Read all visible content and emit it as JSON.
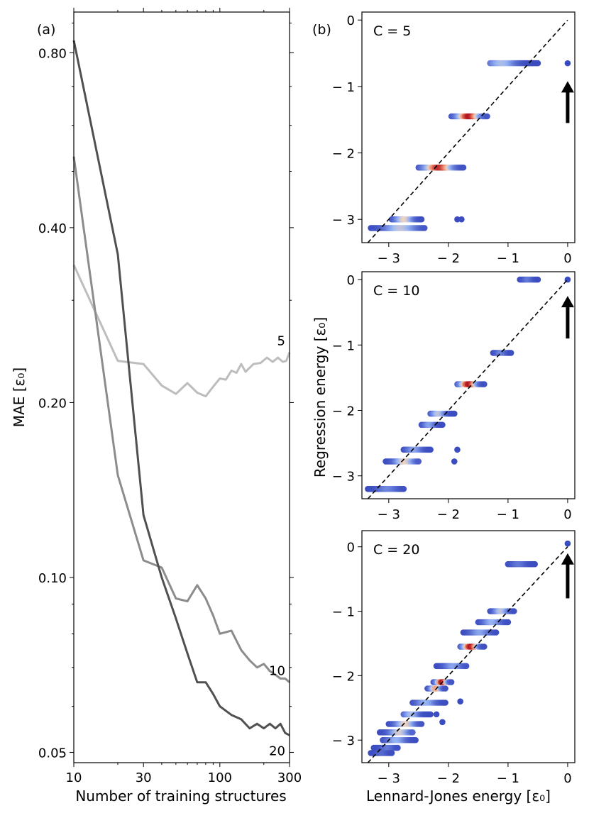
{
  "chart_data": [
    {
      "id": "a",
      "panel_label": "(a)",
      "type": "line",
      "xscale": "log",
      "yscale": "log",
      "xlim": [
        10,
        300
      ],
      "ylim": [
        0.048,
        0.94
      ],
      "xticks": [
        10,
        30,
        100,
        300
      ],
      "xtick_labels": [
        "10",
        "30",
        "100",
        "300"
      ],
      "yticks": [
        0.05,
        0.1,
        0.2,
        0.4,
        0.8
      ],
      "ytick_labels": [
        "0.05",
        "0.10",
        "0.20",
        "0.40",
        "0.80"
      ],
      "xlabel": "Number of training structures",
      "ylabel": "MAE [ε₀]",
      "series": [
        {
          "name": "5",
          "color": "#bdbdbd",
          "points": [
            [
              10,
              0.345
            ],
            [
              20,
              0.236
            ],
            [
              30,
              0.233
            ],
            [
              40,
              0.214
            ],
            [
              50,
              0.207
            ],
            [
              60,
              0.216
            ],
            [
              70,
              0.208
            ],
            [
              80,
              0.205
            ],
            [
              90,
              0.213
            ],
            [
              100,
              0.22
            ],
            [
              110,
              0.219
            ],
            [
              120,
              0.227
            ],
            [
              130,
              0.225
            ],
            [
              140,
              0.233
            ],
            [
              150,
              0.226
            ],
            [
              170,
              0.233
            ],
            [
              190,
              0.234
            ],
            [
              210,
              0.239
            ],
            [
              230,
              0.235
            ],
            [
              250,
              0.239
            ],
            [
              270,
              0.235
            ],
            [
              285,
              0.236
            ],
            [
              300,
              0.244
            ]
          ]
        },
        {
          "name": "10",
          "color": "#8c8c8c",
          "points": [
            [
              10,
              0.53
            ],
            [
              20,
              0.15
            ],
            [
              30,
              0.107
            ],
            [
              40,
              0.104
            ],
            [
              50,
              0.092
            ],
            [
              60,
              0.091
            ],
            [
              70,
              0.097
            ],
            [
              80,
              0.092
            ],
            [
              90,
              0.086
            ],
            [
              100,
              0.08
            ],
            [
              120,
              0.081
            ],
            [
              140,
              0.075
            ],
            [
              160,
              0.072
            ],
            [
              180,
              0.07
            ],
            [
              200,
              0.071
            ],
            [
              220,
              0.069
            ],
            [
              240,
              0.068
            ],
            [
              260,
              0.067
            ],
            [
              280,
              0.067
            ],
            [
              300,
              0.066
            ]
          ]
        },
        {
          "name": "20",
          "color": "#505050",
          "points": [
            [
              10,
              0.84
            ],
            [
              20,
              0.36
            ],
            [
              30,
              0.128
            ],
            [
              40,
              0.1
            ],
            [
              50,
              0.085
            ],
            [
              60,
              0.074
            ],
            [
              70,
              0.066
            ],
            [
              80,
              0.066
            ],
            [
              90,
              0.063
            ],
            [
              100,
              0.06
            ],
            [
              120,
              0.058
            ],
            [
              140,
              0.057
            ],
            [
              160,
              0.055
            ],
            [
              180,
              0.056
            ],
            [
              200,
              0.055
            ],
            [
              220,
              0.056
            ],
            [
              240,
              0.055
            ],
            [
              260,
              0.056
            ],
            [
              280,
              0.054
            ],
            [
              300,
              0.0535
            ]
          ]
        }
      ]
    },
    {
      "id": "b1",
      "panel_label": "(b)",
      "type": "scatter",
      "annotation": "C =  5",
      "xlim": [
        -3.45,
        0.12
      ],
      "ylim": [
        -3.35,
        0.12
      ],
      "xticks": [
        -3,
        -2,
        -1,
        0
      ],
      "xtick_labels": [
        "− 3",
        "− 2",
        "− 1",
        "0"
      ],
      "yticks": [
        0,
        -1,
        -2,
        -3
      ],
      "ytick_labels": [
        "0",
        "− 1",
        "− 2",
        "− 3"
      ],
      "diagonal": [
        [
          -3.35,
          -3.35
        ],
        [
          0,
          0
        ]
      ],
      "arrow": {
        "x": 0,
        "y_from": -1.55,
        "y_to": -0.92
      },
      "clusters": [
        {
          "y": -0.65,
          "x_min": -1.3,
          "x_max": -0.5,
          "peak_x": -1.08,
          "peak_heat": 0.4
        },
        {
          "y": -1.45,
          "x_min": -1.95,
          "x_max": -1.35,
          "peak_x": -1.65,
          "peak_heat": 1.0
        },
        {
          "y": -2.22,
          "x_min": -2.5,
          "x_max": -1.75,
          "peak_x": -2.15,
          "peak_heat": 0.95
        },
        {
          "y": -3.0,
          "x_min": -2.95,
          "x_max": -2.45,
          "peak_x": -2.72,
          "peak_heat": 0.55
        },
        {
          "y": -3.13,
          "x_min": -3.3,
          "x_max": -2.4,
          "peak_x": -2.78,
          "peak_heat": 0.45
        }
      ],
      "outliers": [
        [
          0,
          -0.65
        ],
        [
          -1.85,
          -3.0
        ],
        [
          -1.78,
          -3.0
        ]
      ]
    },
    {
      "id": "b2",
      "type": "scatter",
      "annotation": "C =  10",
      "xlim": [
        -3.45,
        0.12
      ],
      "ylim": [
        -3.35,
        0.12
      ],
      "xticks": [
        -3,
        -2,
        -1,
        0
      ],
      "xtick_labels": [
        "− 3",
        "− 2",
        "− 1",
        "0"
      ],
      "yticks": [
        0,
        -1,
        -2,
        -3
      ],
      "ytick_labels": [
        "0",
        "− 1",
        "− 2",
        "− 3"
      ],
      "ylabel": "Regression energy [ε₀]",
      "diagonal": [
        [
          -3.35,
          -3.35
        ],
        [
          0,
          0
        ]
      ],
      "arrow": {
        "x": 0,
        "y_from": -0.9,
        "y_to": -0.25
      },
      "clusters": [
        {
          "y": 0.0,
          "x_min": -0.8,
          "x_max": -0.5,
          "peak_x": -0.65,
          "peak_heat": 0.15
        },
        {
          "y": -1.12,
          "x_min": -1.25,
          "x_max": -0.95,
          "peak_x": -1.1,
          "peak_heat": 0.2
        },
        {
          "y": -1.6,
          "x_min": -1.85,
          "x_max": -1.4,
          "peak_x": -1.65,
          "peak_heat": 1.0
        },
        {
          "y": -2.05,
          "x_min": -2.3,
          "x_max": -1.9,
          "peak_x": -2.15,
          "peak_heat": 0.45
        },
        {
          "y": -2.22,
          "x_min": -2.45,
          "x_max": -2.1,
          "peak_x": -2.3,
          "peak_heat": 0.3
        },
        {
          "y": -2.6,
          "x_min": -2.75,
          "x_max": -2.3,
          "peak_x": -2.55,
          "peak_heat": 0.3
        },
        {
          "y": -2.78,
          "x_min": -3.05,
          "x_max": -2.5,
          "peak_x": -2.72,
          "peak_heat": 0.55
        },
        {
          "y": -3.2,
          "x_min": -3.35,
          "x_max": -2.75,
          "peak_x": -3.0,
          "peak_heat": 0.2
        }
      ],
      "outliers": [
        [
          0,
          0.0
        ],
        [
          -1.85,
          -2.6
        ],
        [
          -1.9,
          -2.78
        ]
      ]
    },
    {
      "id": "b3",
      "type": "scatter",
      "annotation": "C =  20",
      "xlim": [
        -3.45,
        0.12
      ],
      "ylim": [
        -3.35,
        0.25
      ],
      "xticks": [
        -3,
        -2,
        -1,
        0
      ],
      "xtick_labels": [
        "− 3",
        "− 2",
        "− 1",
        "0"
      ],
      "yticks": [
        0,
        -1,
        -2,
        -3
      ],
      "ytick_labels": [
        "0",
        "− 1",
        "− 2",
        "− 3"
      ],
      "xlabel": "Lennard-Jones energy [ε₀]",
      "diagonal": [
        [
          -3.35,
          -3.35
        ],
        [
          0,
          0
        ]
      ],
      "arrow": {
        "x": 0,
        "y_from": -0.8,
        "y_to": -0.1
      },
      "clusters": [
        {
          "y": -0.27,
          "x_min": -1.0,
          "x_max": -0.55,
          "peak_x": -0.8,
          "peak_heat": 0.15
        },
        {
          "y": -1.0,
          "x_min": -1.3,
          "x_max": -0.9,
          "peak_x": -1.1,
          "peak_heat": 0.45
        },
        {
          "y": -1.17,
          "x_min": -1.5,
          "x_max": -1.0,
          "peak_x": -1.25,
          "peak_heat": 0.35
        },
        {
          "y": -1.33,
          "x_min": -1.75,
          "x_max": -1.2,
          "peak_x": -1.45,
          "peak_heat": 0.3
        },
        {
          "y": -1.55,
          "x_min": -1.8,
          "x_max": -1.4,
          "peak_x": -1.62,
          "peak_heat": 1.0
        },
        {
          "y": -1.85,
          "x_min": -2.2,
          "x_max": -1.7,
          "peak_x": -1.9,
          "peak_heat": 0.3
        },
        {
          "y": -2.1,
          "x_min": -2.25,
          "x_max": -1.95,
          "peak_x": -2.1,
          "peak_heat": 1.0
        },
        {
          "y": -2.2,
          "x_min": -2.35,
          "x_max": -2.05,
          "peak_x": -2.2,
          "peak_heat": 0.7
        },
        {
          "y": -2.42,
          "x_min": -2.6,
          "x_max": -2.05,
          "peak_x": -2.35,
          "peak_heat": 0.35
        },
        {
          "y": -2.6,
          "x_min": -2.75,
          "x_max": -2.3,
          "peak_x": -2.6,
          "peak_heat": 0.4
        },
        {
          "y": -2.75,
          "x_min": -3.0,
          "x_max": -2.45,
          "peak_x": -2.7,
          "peak_heat": 0.55
        },
        {
          "y": -2.88,
          "x_min": -3.15,
          "x_max": -2.6,
          "peak_x": -2.8,
          "peak_heat": 0.5
        },
        {
          "y": -3.0,
          "x_min": -3.1,
          "x_max": -2.55,
          "peak_x": -2.85,
          "peak_heat": 0.35
        },
        {
          "y": -3.12,
          "x_min": -3.25,
          "x_max": -2.85,
          "peak_x": -3.0,
          "peak_heat": 0.15
        },
        {
          "y": -3.2,
          "x_min": -3.3,
          "x_max": -2.95,
          "peak_x": -3.1,
          "peak_heat": 0.1
        }
      ],
      "outliers": [
        [
          0,
          0.05
        ],
        [
          -1.8,
          -2.4
        ],
        [
          -2.2,
          -2.6
        ],
        [
          -2.1,
          -2.72
        ]
      ]
    }
  ]
}
